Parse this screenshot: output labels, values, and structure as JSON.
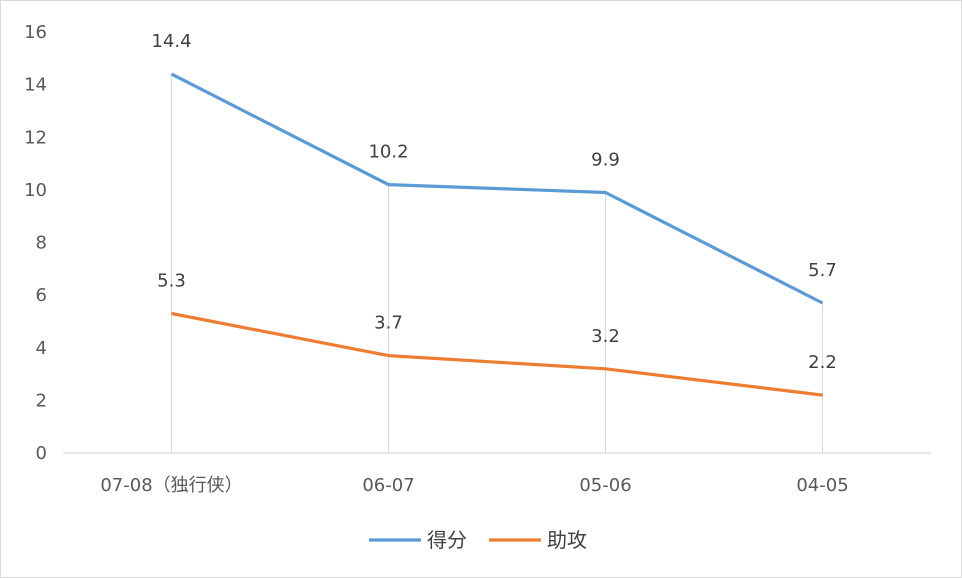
{
  "chart_data": {
    "type": "line",
    "categories": [
      "07-08（独行侠）",
      "06-07",
      "05-06",
      "04-05"
    ],
    "series": [
      {
        "name": "得分",
        "values": [
          14.4,
          10.2,
          9.9,
          5.7
        ],
        "color": "#5B9BD5"
      },
      {
        "name": "助攻",
        "values": [
          5.3,
          3.7,
          3.2,
          2.2
        ],
        "color": "#ED7D31"
      }
    ],
    "ylim": [
      0,
      16
    ],
    "yticks": [
      0,
      2,
      4,
      6,
      8,
      10,
      12,
      14,
      16
    ],
    "grid": "vertical drop lines at categories",
    "legend": "bottom-center",
    "data_labels": true,
    "title": "",
    "xlabel": "",
    "ylabel": ""
  }
}
